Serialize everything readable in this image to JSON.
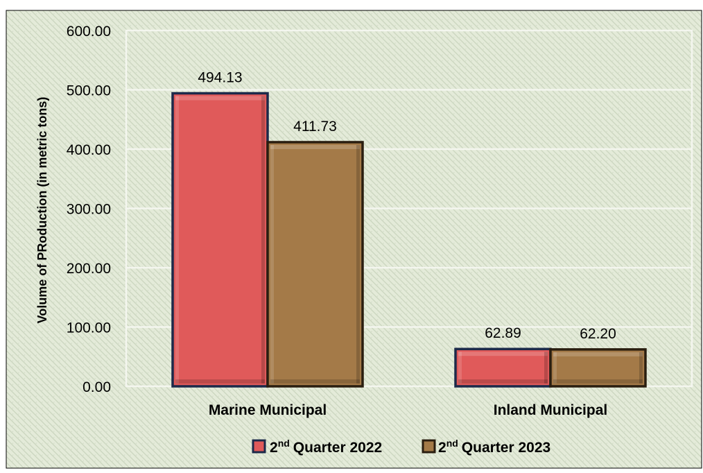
{
  "chart_data": {
    "type": "bar",
    "title": "",
    "xlabel": "",
    "ylabel": "Volume of PRoduction (in metric tons)",
    "ylim": [
      0,
      600
    ],
    "y_ticks": [
      "0.00",
      "100.00",
      "200.00",
      "300.00",
      "400.00",
      "500.00",
      "600.00"
    ],
    "categories": [
      "Marine Municipal",
      "Inland Municipal"
    ],
    "series": [
      {
        "name_prefix": "2",
        "name_sup": "nd",
        "name_rest": "Quarter 2022",
        "values": [
          494.13,
          62.89
        ],
        "labels": [
          "494.13",
          "62.89"
        ],
        "color": "#e05a5a",
        "border": "#1c2a4a"
      },
      {
        "name_prefix": "2",
        "name_sup": "nd",
        "name_rest": "Quarter 2023",
        "values": [
          411.73,
          62.2
        ],
        "labels": [
          "411.73",
          "62.20"
        ],
        "color": "#a47a48",
        "border": "#2a1e10"
      }
    ],
    "legend_position": "bottom",
    "grid": true,
    "background_color": "#e4ebd9"
  }
}
